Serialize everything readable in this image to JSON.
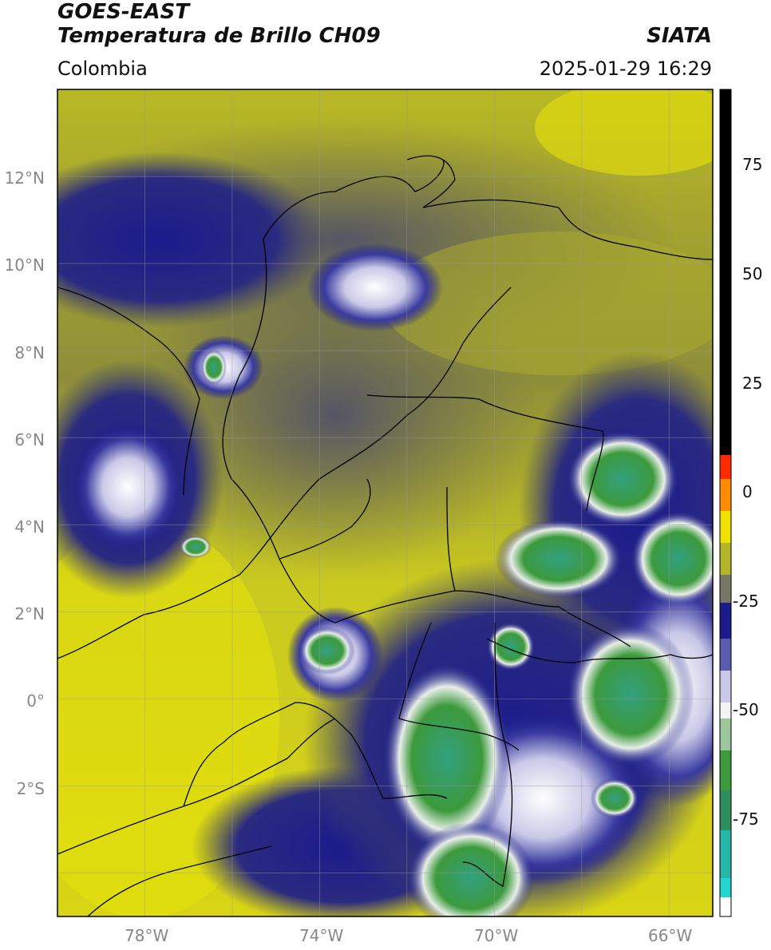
{
  "header": {
    "satellite": "GOES-EAST",
    "product": "Temperatura de Brillo CH09",
    "region": "Colombia",
    "brand": "SIATA",
    "datetime": "2025-01-29 16:29"
  },
  "map": {
    "lat_labels": [
      "12°N",
      "10°N",
      "8°N",
      "6°N",
      "4°N",
      "2°N",
      "0°",
      "2°S"
    ],
    "lon_labels": [
      "78°W",
      "74°W",
      "70°W",
      "66°W"
    ],
    "lon_range": [
      -80,
      -65
    ],
    "lat_range": [
      -5,
      14
    ]
  },
  "colorbar": {
    "ticks": [
      "75",
      "50",
      "25",
      "0",
      "-25",
      "-50",
      "-75"
    ],
    "colors": {
      "warm_black": "#000000",
      "red": "#ff2a00",
      "orange": "#ff9900",
      "yellow": "#e8e400",
      "olive": "#8a8a2a",
      "gray": "#666666",
      "navy": "#1b1b8c",
      "white": "#f4f4f4",
      "green": "#3c9a3c",
      "cyan": "#23d6cf"
    }
  }
}
